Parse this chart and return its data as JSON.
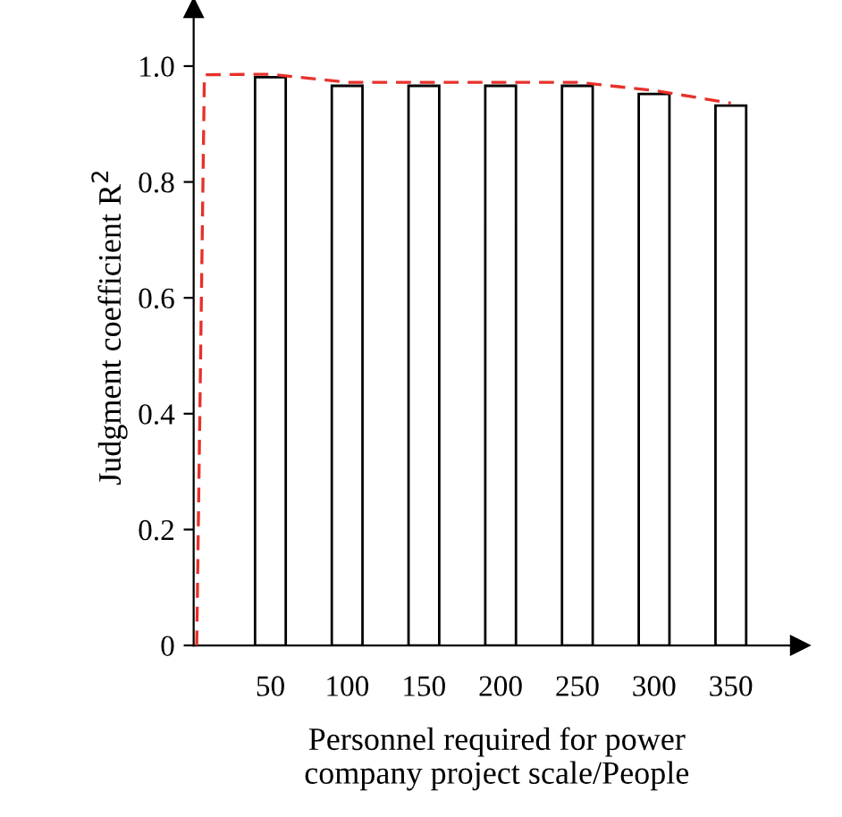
{
  "chart_data": {
    "type": "bar",
    "xlabel": "Personnel required for power\ncompany project scale/People",
    "ylabel": "Judgment coefficient R$^{2}$",
    "x": [
      50,
      100,
      150,
      200,
      250,
      300,
      350
    ],
    "series": [
      {
        "color": "#ffffff",
        "values": [
          0.981,
          0.966,
          0.966,
          0.966,
          0.966,
          0.952,
          0.932
        ]
      },
      {
        "type": "line",
        "color": "#e8302a",
        "line_style": "dashed",
        "x": [
          2,
          7,
          50,
          100,
          150,
          200,
          250,
          300,
          350
        ],
        "values": [
          0,
          0.985,
          0.986,
          0.972,
          0.972,
          0.972,
          0.972,
          0.958,
          0.936
        ]
      }
    ],
    "xlim": [
      0,
      395
    ],
    "ylim": [
      0,
      1.1
    ],
    "xticks": [
      50,
      100,
      150,
      200,
      250,
      300,
      350
    ],
    "yticks": [
      0,
      {
        "value": 0.2,
        "label": "0.2"
      },
      {
        "value": 0.4,
        "label": "0.4"
      },
      {
        "value": 0.6,
        "label": "0.6"
      },
      {
        "value": 0.8,
        "label": "0.8"
      },
      {
        "value": 1.0,
        "label": "1.0"
      }
    ],
    "grid": false,
    "legend": false
  }
}
